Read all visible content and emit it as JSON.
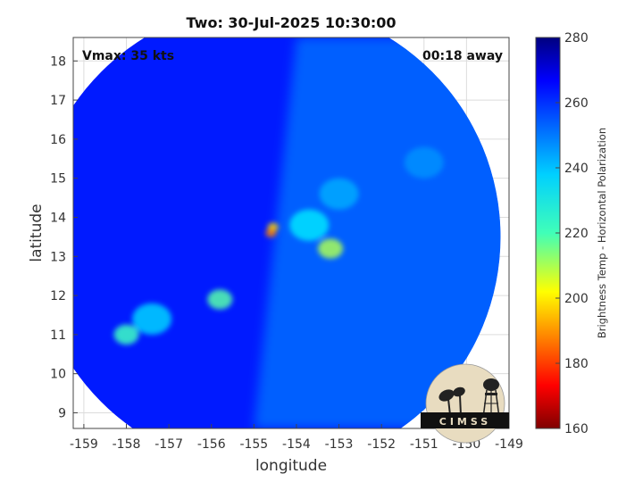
{
  "chart_data": {
    "type": "heatmap",
    "title": "Two: 30-Jul-2025 10:30:00",
    "xlabel": "longitude",
    "ylabel": "latitude",
    "xlim": [
      -159.25,
      -149
    ],
    "ylim": [
      8.6,
      18.6
    ],
    "xticks": [
      -159,
      -158,
      -157,
      -156,
      -155,
      -154,
      -153,
      -152,
      -151,
      -150,
      -149
    ],
    "yticks": [
      9,
      10,
      11,
      12,
      13,
      14,
      15,
      16,
      17,
      18
    ],
    "grid": true,
    "annotations": {
      "vmax": "Vmax: 35 kts",
      "time_away": "00:18 away"
    },
    "colorbar": {
      "label": "Brightness Temp - Horizontal Polarization",
      "range": [
        160,
        280
      ],
      "ticks": [
        160,
        180,
        200,
        220,
        240,
        260,
        280
      ],
      "colormap": "jet"
    },
    "swath": {
      "center": [
        -154.7,
        13.5
      ],
      "radius_deg": 5.5,
      "background_temp": 262
    },
    "features": [
      {
        "lon": -154.55,
        "lat": 13.75,
        "temp": 200
      },
      {
        "lon": -154.6,
        "lat": 13.6,
        "temp": 190
      },
      {
        "lon": -153.2,
        "lat": 13.2,
        "temp": 215
      },
      {
        "lon": -153.7,
        "lat": 13.8,
        "temp": 238
      },
      {
        "lon": -155.8,
        "lat": 11.9,
        "temp": 225
      },
      {
        "lon": -158.0,
        "lat": 11.0,
        "temp": 228
      },
      {
        "lon": -157.4,
        "lat": 11.4,
        "temp": 240
      },
      {
        "lon": -153.0,
        "lat": 14.6,
        "temp": 245
      },
      {
        "lon": -151.0,
        "lat": 15.4,
        "temp": 248
      }
    ]
  },
  "logo": {
    "text": "CIMSS"
  }
}
